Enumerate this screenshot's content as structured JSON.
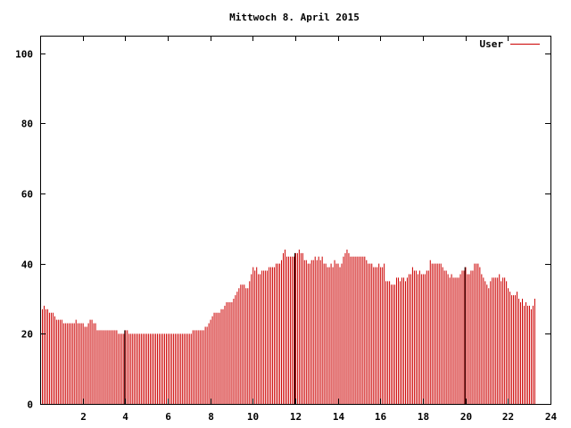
{
  "colors": {
    "series": "#cc0000",
    "axis": "#000000",
    "background": "#ffffff"
  },
  "chart_data": {
    "type": "bar",
    "title": "Mittwoch 8. April 2015",
    "xlabel": "",
    "ylabel": "",
    "xlim": [
      0,
      24
    ],
    "ylim": [
      0,
      105
    ],
    "xticks": [
      "2",
      "4",
      "6",
      "8",
      "10",
      "12",
      "14",
      "16",
      "18",
      "20",
      "22",
      "24"
    ],
    "yticks": [
      "0",
      "20",
      "40",
      "60",
      "80",
      "100"
    ],
    "legend": {
      "position": "top-right",
      "entries": [
        "User"
      ]
    },
    "grid": false,
    "series": [
      {
        "name": "User",
        "color": "#cc0000",
        "x_step_hours": 0.0833,
        "values": [
          28,
          27,
          28,
          27,
          27,
          26,
          26,
          26,
          25,
          24,
          24,
          24,
          24,
          23,
          23,
          23,
          23,
          23,
          23,
          23,
          24,
          23,
          23,
          23,
          23,
          22,
          22,
          23,
          24,
          24,
          23,
          23,
          21,
          21,
          21,
          21,
          21,
          21,
          21,
          21,
          21,
          21,
          21,
          21,
          20,
          20,
          20,
          20,
          21,
          21,
          20,
          20,
          20,
          20,
          20,
          20,
          20,
          20,
          20,
          20,
          20,
          20,
          20,
          20,
          20,
          20,
          20,
          20,
          20,
          20,
          20,
          20,
          20,
          20,
          20,
          20,
          20,
          20,
          20,
          20,
          20,
          20,
          20,
          20,
          20,
          20,
          21,
          21,
          21,
          21,
          21,
          21,
          21,
          22,
          22,
          23,
          24,
          25,
          26,
          26,
          26,
          26,
          27,
          27,
          28,
          29,
          29,
          29,
          29,
          30,
          31,
          32,
          33,
          34,
          34,
          34,
          33,
          33,
          35,
          37,
          39,
          38,
          39,
          37,
          37,
          38,
          38,
          38,
          38,
          39,
          39,
          39,
          39,
          40,
          40,
          40,
          41,
          43,
          44,
          42,
          42,
          42,
          42,
          42,
          43,
          43,
          44,
          43,
          43,
          41,
          41,
          40,
          40,
          41,
          41,
          42,
          41,
          42,
          41,
          42,
          40,
          40,
          39,
          39,
          40,
          39,
          41,
          40,
          40,
          39,
          40,
          42,
          43,
          44,
          43,
          42,
          42,
          42,
          42,
          42,
          42,
          42,
          42,
          42,
          41,
          40,
          40,
          40,
          39,
          39,
          39,
          40,
          39,
          39,
          40,
          35,
          35,
          35,
          34,
          34,
          34,
          36,
          36,
          35,
          36,
          36,
          35,
          36,
          37,
          37,
          39,
          38,
          38,
          37,
          38,
          37,
          37,
          37,
          38,
          38,
          41,
          40,
          40,
          40,
          40,
          40,
          40,
          39,
          38,
          38,
          37,
          36,
          37,
          36,
          36,
          36,
          36,
          37,
          38,
          38,
          39,
          37,
          37,
          38,
          38,
          40,
          40,
          40,
          39,
          37,
          36,
          35,
          34,
          33,
          35,
          36,
          36,
          36,
          36,
          37,
          35,
          36,
          36,
          35,
          33,
          32,
          31,
          31,
          31,
          32,
          30,
          29,
          30,
          28,
          29,
          28,
          28,
          27,
          28,
          30
        ]
      }
    ],
    "darker_marks_at": [
      4,
      12,
      20
    ]
  }
}
